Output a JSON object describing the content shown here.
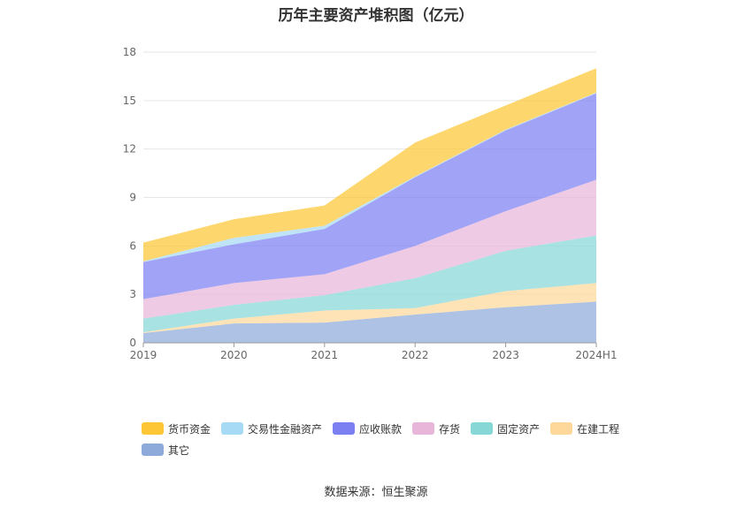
{
  "chart_data": {
    "type": "area",
    "stacked": true,
    "title": "历年主要资产堆积图（亿元）",
    "categories": [
      "2019",
      "2020",
      "2021",
      "2022",
      "2023",
      "2024H1"
    ],
    "ylim": [
      0,
      18
    ],
    "yticks": [
      "0",
      "3",
      "6",
      "9",
      "12",
      "15",
      "18"
    ],
    "grid": true,
    "legend_position": "bottom",
    "series": [
      {
        "name": "其它",
        "color": "#8eaadb",
        "values": [
          0.6,
          1.2,
          1.25,
          1.75,
          2.2,
          2.55
        ]
      },
      {
        "name": "在建工程",
        "color": "#fdd89a",
        "values": [
          0.05,
          0.3,
          0.75,
          0.4,
          1.0,
          1.15
        ]
      },
      {
        "name": "固定资产",
        "color": "#87d7d7",
        "values": [
          0.85,
          0.85,
          0.95,
          1.85,
          2.5,
          2.95
        ]
      },
      {
        "name": "存货",
        "color": "#e8b6d9",
        "values": [
          1.2,
          1.35,
          1.3,
          2.0,
          2.45,
          3.45
        ]
      },
      {
        "name": "应收账款",
        "color": "#7b7ff2",
        "values": [
          2.3,
          2.4,
          2.8,
          4.25,
          5.0,
          5.35
        ]
      },
      {
        "name": "交易性金融资产",
        "color": "#a6daf5",
        "values": [
          0.05,
          0.4,
          0.2,
          0.05,
          0.05,
          0.05
        ]
      },
      {
        "name": "货币资金",
        "color": "#fdc636",
        "values": [
          1.15,
          1.15,
          1.25,
          2.1,
          1.5,
          1.5
        ]
      }
    ]
  },
  "legend_order": [
    "货币资金",
    "交易性金融资产",
    "应收账款",
    "存货",
    "固定资产",
    "在建工程",
    "其它"
  ],
  "source": "数据来源：恒生聚源"
}
